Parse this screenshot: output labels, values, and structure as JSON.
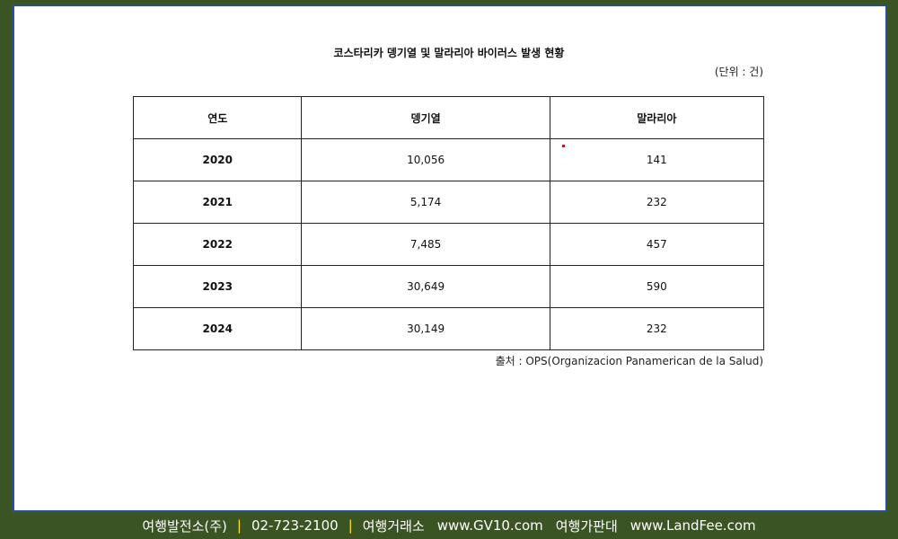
{
  "title": "코스타리카 뎅기열 및 말라리아 바이러스 발생 현황",
  "unit": "(단위 : 건)",
  "table": {
    "headers": [
      "연도",
      "뎅기열",
      "말라리아"
    ],
    "rows": [
      [
        "2020",
        "10,056",
        "141"
      ],
      [
        "2021",
        "5,174",
        "232"
      ],
      [
        "2022",
        "7,485",
        "457"
      ],
      [
        "2023",
        "30,649",
        "590"
      ],
      [
        "2024",
        "30,149",
        "232"
      ]
    ]
  },
  "source": "출처 : OPS(Organizacion Panamerican de la Salud)",
  "footer": {
    "company": "여행발전소(주)",
    "separator": "|",
    "phone": "02-723-2100",
    "site1_name": "여행거래소",
    "site1_url": "www.GV10.com",
    "site2_name": "여행가판대",
    "site2_url": "www.LandFee.com"
  },
  "colors": {
    "frame": "#3a5424",
    "panel_border": "#2b4fa0",
    "separator": "#ffe600"
  }
}
